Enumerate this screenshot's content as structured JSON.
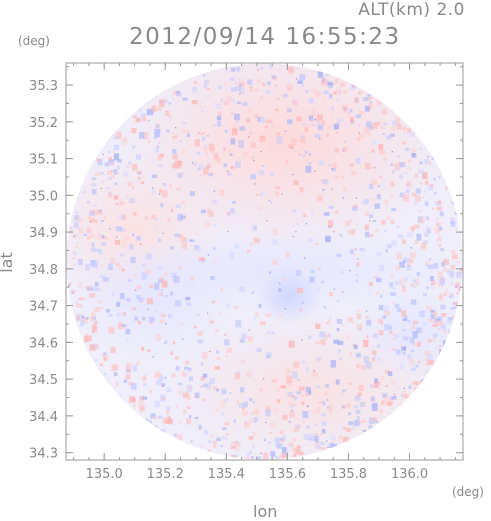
{
  "header": {
    "alt_label": "ALT(km) 2.0",
    "timestamp": "2012/09/14 16:55:23"
  },
  "colors": {
    "frame": "#999999",
    "tick_text": "#8a8a8a",
    "positive": "#ffd6d6",
    "negative": "#d8dcff",
    "neutral": "#efeefa"
  },
  "chart_data": {
    "type": "heatmap",
    "title": "2012/09/14 16:55:23",
    "subtitle": "ALT(km) 2.0",
    "xlabel": "lon",
    "ylabel": "lat",
    "x_unit": "(deg)",
    "y_unit": "(deg)",
    "xlim": [
      134.875,
      136.175
    ],
    "ylim": [
      34.28,
      35.36
    ],
    "x_ticks": [
      "135.0",
      "135.2",
      "135.4",
      "135.6",
      "135.8",
      "136.0"
    ],
    "x_tick_values": [
      135.0,
      135.2,
      135.4,
      135.6,
      135.8,
      136.0
    ],
    "y_ticks": [
      "34.3",
      "34.4",
      "34.5",
      "34.6",
      "34.7",
      "34.8",
      "34.9",
      "35.0",
      "35.1",
      "35.2",
      "35.3"
    ],
    "y_tick_values": [
      34.3,
      34.4,
      34.5,
      34.6,
      34.7,
      34.8,
      34.9,
      35.0,
      35.1,
      35.2,
      35.3
    ],
    "scan_center": [
      135.525,
      34.82
    ],
    "notes": "Circular radar scan field with faint pink (positive) and light blue (negative) speckled values"
  }
}
